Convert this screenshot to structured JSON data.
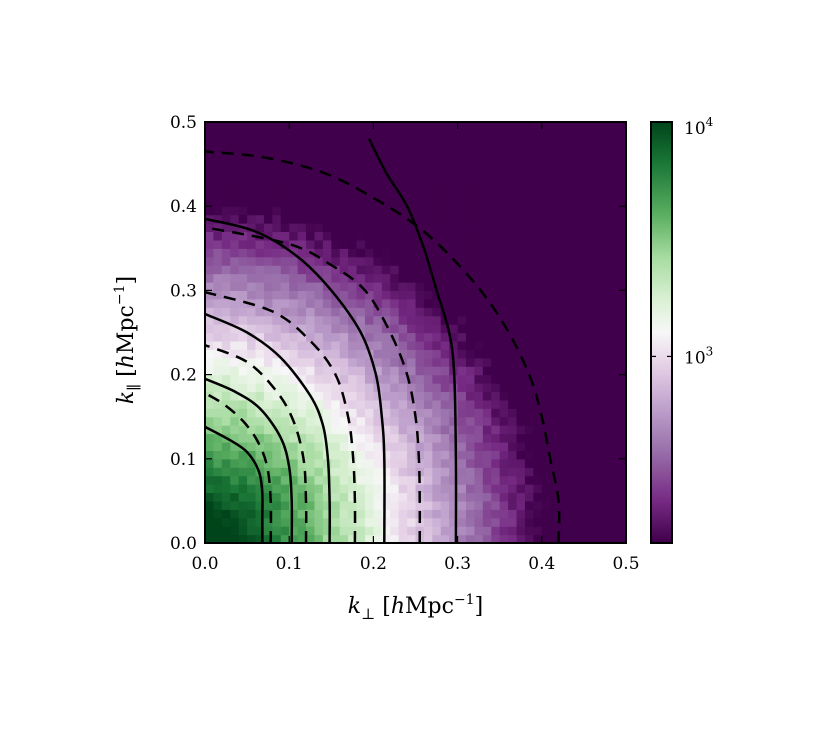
{
  "chart_data": {
    "type": "heatmap",
    "title": "",
    "xlabel": "k_⊥ [hMpc^-1]",
    "ylabel": "k_∥ [hMpc^-1]",
    "xlabel_parts": {
      "symbol": "k",
      "subscript": "⊥",
      "bracket_open": "[",
      "h": "h",
      "unit": "Mpc",
      "exponent": "−1",
      "bracket_close": "]"
    },
    "ylabel_parts": {
      "symbol": "k",
      "subscript": "∥",
      "bracket_open": "[",
      "h": "h",
      "unit": "Mpc",
      "exponent": "−1",
      "bracket_close": "]"
    },
    "xlim": [
      0.0,
      0.5
    ],
    "ylim": [
      0.0,
      0.5
    ],
    "xticks": [
      0.0,
      0.1,
      0.2,
      0.3,
      0.4,
      0.5
    ],
    "yticks": [
      0.0,
      0.1,
      0.2,
      0.3,
      0.4,
      0.5
    ],
    "xtick_labels": [
      "0.0",
      "0.1",
      "0.2",
      "0.3",
      "0.4",
      "0.5"
    ],
    "ytick_labels": [
      "0.0",
      "0.1",
      "0.2",
      "0.3",
      "0.4",
      "0.5"
    ],
    "grid": false,
    "bins_per_axis": 50,
    "field_model": {
      "description": "value(k) ~ exponential fall-off in |k|",
      "ref_radius": 0.24,
      "ref_log10": 3.0,
      "log10_per_unit_k": 5.0,
      "noise_log10": 0.06
    },
    "colorbar": {
      "scale": "log",
      "range": [
        160,
        10000
      ],
      "ticks": [
        1000,
        10000
      ],
      "tick_labels": [
        {
          "base": "10",
          "exp": "3"
        },
        {
          "base": "10",
          "exp": "4"
        }
      ],
      "colormap": "PRGn",
      "colors": {
        "low": "#40004b",
        "mid": "#f7f7f7",
        "high": "#00441b"
      }
    },
    "contours_solid": [
      [
        [
          0.068,
          0.0
        ],
        [
          0.068,
          0.03
        ],
        [
          0.068,
          0.06
        ],
        [
          0.064,
          0.085
        ],
        [
          0.05,
          0.108
        ],
        [
          0.03,
          0.122
        ],
        [
          0.0,
          0.138
        ]
      ],
      [
        [
          0.103,
          0.0
        ],
        [
          0.103,
          0.05
        ],
        [
          0.1,
          0.09
        ],
        [
          0.09,
          0.125
        ],
        [
          0.065,
          0.16
        ],
        [
          0.035,
          0.18
        ],
        [
          0.0,
          0.195
        ]
      ],
      [
        [
          0.148,
          0.0
        ],
        [
          0.148,
          0.05
        ],
        [
          0.146,
          0.1
        ],
        [
          0.14,
          0.14
        ],
        [
          0.125,
          0.175
        ],
        [
          0.09,
          0.22
        ],
        [
          0.05,
          0.25
        ],
        [
          0.0,
          0.272
        ]
      ],
      [
        [
          0.213,
          0.0
        ],
        [
          0.213,
          0.1
        ],
        [
          0.21,
          0.15
        ],
        [
          0.203,
          0.2
        ],
        [
          0.185,
          0.25
        ],
        [
          0.15,
          0.3
        ],
        [
          0.11,
          0.34
        ],
        [
          0.06,
          0.37
        ],
        [
          0.0,
          0.385
        ]
      ],
      [
        [
          0.298,
          0.0
        ],
        [
          0.298,
          0.1
        ],
        [
          0.296,
          0.2
        ],
        [
          0.29,
          0.25
        ],
        [
          0.275,
          0.3
        ],
        [
          0.26,
          0.35
        ],
        [
          0.24,
          0.4
        ],
        [
          0.215,
          0.44
        ],
        [
          0.195,
          0.48
        ]
      ]
    ],
    "contours_dashed": [
      [
        [
          0.078,
          0.0
        ],
        [
          0.078,
          0.05
        ],
        [
          0.074,
          0.09
        ],
        [
          0.063,
          0.12
        ],
        [
          0.045,
          0.145
        ],
        [
          0.022,
          0.165
        ],
        [
          0.0,
          0.178
        ]
      ],
      [
        [
          0.12,
          0.0
        ],
        [
          0.12,
          0.05
        ],
        [
          0.117,
          0.1
        ],
        [
          0.105,
          0.145
        ],
        [
          0.085,
          0.18
        ],
        [
          0.05,
          0.215
        ],
        [
          0.0,
          0.235
        ]
      ],
      [
        [
          0.178,
          0.0
        ],
        [
          0.178,
          0.05
        ],
        [
          0.176,
          0.1
        ],
        [
          0.17,
          0.15
        ],
        [
          0.155,
          0.2
        ],
        [
          0.125,
          0.24
        ],
        [
          0.08,
          0.275
        ],
        [
          0.0,
          0.298
        ]
      ],
      [
        [
          0.255,
          0.0
        ],
        [
          0.255,
          0.05
        ],
        [
          0.254,
          0.1
        ],
        [
          0.25,
          0.15
        ],
        [
          0.24,
          0.2
        ],
        [
          0.22,
          0.25
        ],
        [
          0.19,
          0.3
        ],
        [
          0.15,
          0.33
        ],
        [
          0.1,
          0.355
        ],
        [
          0.0,
          0.375
        ]
      ],
      [
        [
          0.42,
          0.0
        ],
        [
          0.42,
          0.05
        ],
        [
          0.41,
          0.1
        ],
        [
          0.4,
          0.15
        ],
        [
          0.385,
          0.2
        ],
        [
          0.355,
          0.26
        ],
        [
          0.315,
          0.315
        ],
        [
          0.26,
          0.37
        ],
        [
          0.2,
          0.41
        ],
        [
          0.14,
          0.44
        ],
        [
          0.07,
          0.458
        ],
        [
          0.0,
          0.465
        ]
      ]
    ]
  }
}
